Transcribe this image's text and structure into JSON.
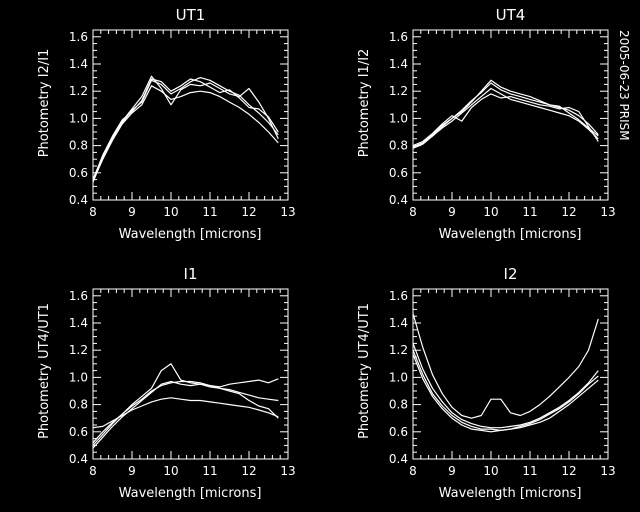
{
  "side_label": "2005-06-23 PRISM",
  "colors": {
    "background": "#000000",
    "foreground": "#ffffff"
  },
  "chart_data": [
    {
      "type": "line",
      "title": "UT1",
      "xlabel": "Wavelength [microns]",
      "ylabel": "Photometry I2/I1",
      "xlim": [
        8,
        13
      ],
      "ylim": [
        0.4,
        1.65
      ],
      "xticks": [
        "8",
        "9",
        "10",
        "11",
        "12",
        "13"
      ],
      "yticks": [
        "0.4",
        "0.6",
        "0.8",
        "1.0",
        "1.2",
        "1.4",
        "1.6"
      ],
      "grid": false,
      "x": [
        8.0,
        8.25,
        8.5,
        8.75,
        9.0,
        9.25,
        9.5,
        9.75,
        10.0,
        10.25,
        10.5,
        10.75,
        11.0,
        11.25,
        11.5,
        11.75,
        12.0,
        12.25,
        12.5,
        12.75
      ],
      "series": [
        {
          "values": [
            0.55,
            0.72,
            0.86,
            0.97,
            1.06,
            1.12,
            1.28,
            1.25,
            1.18,
            1.22,
            1.27,
            1.3,
            1.28,
            1.24,
            1.2,
            1.17,
            1.1,
            1.04,
            0.97,
            0.88
          ]
        },
        {
          "values": [
            0.54,
            0.7,
            0.84,
            0.96,
            1.04,
            1.1,
            1.24,
            1.2,
            1.14,
            1.16,
            1.19,
            1.2,
            1.19,
            1.16,
            1.12,
            1.08,
            1.03,
            0.97,
            0.9,
            0.82
          ]
        },
        {
          "values": [
            0.53,
            0.71,
            0.85,
            0.98,
            1.07,
            1.16,
            1.31,
            1.22,
            1.1,
            1.21,
            1.25,
            1.24,
            1.26,
            1.22,
            1.18,
            1.16,
            1.22,
            1.12,
            1.0,
            0.85
          ]
        },
        {
          "values": [
            0.55,
            0.73,
            0.87,
            0.99,
            1.05,
            1.13,
            1.29,
            1.27,
            1.2,
            1.24,
            1.29,
            1.27,
            1.23,
            1.19,
            1.21,
            1.15,
            1.08,
            1.07,
            1.01,
            0.9
          ]
        }
      ]
    },
    {
      "type": "line",
      "title": "UT4",
      "xlabel": "Wavelength [microns]",
      "ylabel": "Photometry I1/I2",
      "xlim": [
        8,
        13
      ],
      "ylim": [
        0.4,
        1.65
      ],
      "xticks": [
        "8",
        "9",
        "10",
        "11",
        "12",
        "13"
      ],
      "yticks": [
        "0.4",
        "0.6",
        "0.8",
        "1.0",
        "1.2",
        "1.4",
        "1.6"
      ],
      "grid": false,
      "x": [
        8.0,
        8.25,
        8.5,
        8.75,
        9.0,
        9.25,
        9.5,
        9.75,
        10.0,
        10.25,
        10.5,
        10.75,
        11.0,
        11.25,
        11.5,
        11.75,
        12.0,
        12.25,
        12.5,
        12.75
      ],
      "series": [
        {
          "values": [
            0.79,
            0.82,
            0.88,
            0.95,
            1.0,
            1.05,
            1.12,
            1.2,
            1.28,
            1.23,
            1.2,
            1.18,
            1.16,
            1.13,
            1.1,
            1.08,
            1.06,
            1.02,
            0.96,
            0.88
          ]
        },
        {
          "values": [
            0.78,
            0.81,
            0.87,
            0.93,
            0.98,
            1.04,
            1.1,
            1.16,
            1.22,
            1.18,
            1.14,
            1.12,
            1.1,
            1.08,
            1.06,
            1.04,
            1.02,
            0.98,
            0.92,
            0.85
          ]
        },
        {
          "values": [
            0.8,
            0.83,
            0.89,
            0.96,
            1.02,
            0.98,
            1.08,
            1.14,
            1.18,
            1.15,
            1.16,
            1.14,
            1.12,
            1.1,
            1.09,
            1.07,
            1.08,
            1.05,
            0.94,
            0.83
          ]
        },
        {
          "values": [
            0.79,
            0.82,
            0.87,
            0.94,
            1.0,
            1.06,
            1.13,
            1.19,
            1.26,
            1.21,
            1.18,
            1.16,
            1.14,
            1.12,
            1.1,
            1.09,
            1.04,
            0.99,
            0.93,
            0.87
          ]
        }
      ]
    },
    {
      "type": "line",
      "title": "I1",
      "xlabel": "Wavelength [microns]",
      "ylabel": "Photometry UT4/UT1",
      "xlim": [
        8,
        13
      ],
      "ylim": [
        0.4,
        1.65
      ],
      "xticks": [
        "8",
        "9",
        "10",
        "11",
        "12",
        "13"
      ],
      "yticks": [
        "0.4",
        "0.6",
        "0.8",
        "1.0",
        "1.2",
        "1.4",
        "1.6"
      ],
      "grid": false,
      "x": [
        8.0,
        8.25,
        8.5,
        8.75,
        9.0,
        9.25,
        9.5,
        9.75,
        10.0,
        10.25,
        10.5,
        10.75,
        11.0,
        11.25,
        11.5,
        11.75,
        12.0,
        12.25,
        12.5,
        12.75
      ],
      "series": [
        {
          "values": [
            0.5,
            0.58,
            0.66,
            0.73,
            0.8,
            0.86,
            0.92,
            1.05,
            1.1,
            0.98,
            0.96,
            0.95,
            0.94,
            0.93,
            0.95,
            0.96,
            0.97,
            0.98,
            0.96,
            0.99
          ]
        },
        {
          "values": [
            0.63,
            0.64,
            0.68,
            0.72,
            0.76,
            0.79,
            0.82,
            0.84,
            0.85,
            0.84,
            0.83,
            0.83,
            0.82,
            0.81,
            0.8,
            0.79,
            0.78,
            0.76,
            0.74,
            0.71
          ]
        },
        {
          "values": [
            0.48,
            0.56,
            0.64,
            0.71,
            0.77,
            0.83,
            0.89,
            0.95,
            0.97,
            0.95,
            0.94,
            0.95,
            0.93,
            0.92,
            0.91,
            0.89,
            0.87,
            0.85,
            0.84,
            0.83
          ]
        },
        {
          "values": [
            0.52,
            0.6,
            0.67,
            0.73,
            0.79,
            0.84,
            0.9,
            0.94,
            0.96,
            0.97,
            0.97,
            0.96,
            0.94,
            0.92,
            0.9,
            0.88,
            0.83,
            0.79,
            0.77,
            0.7
          ]
        }
      ]
    },
    {
      "type": "line",
      "title": "I2",
      "xlabel": "Wavelength [microns]",
      "ylabel": "Photometry UT4/UT1",
      "xlim": [
        8,
        13
      ],
      "ylim": [
        0.4,
        1.65
      ],
      "xticks": [
        "8",
        "9",
        "10",
        "11",
        "12",
        "13"
      ],
      "yticks": [
        "0.4",
        "0.6",
        "0.8",
        "1.0",
        "1.2",
        "1.4",
        "1.6"
      ],
      "grid": false,
      "x": [
        8.0,
        8.25,
        8.5,
        8.75,
        9.0,
        9.25,
        9.5,
        9.75,
        10.0,
        10.25,
        10.5,
        10.75,
        11.0,
        11.25,
        11.5,
        11.75,
        12.0,
        12.25,
        12.5,
        12.75
      ],
      "series": [
        {
          "values": [
            1.47,
            1.22,
            1.02,
            0.88,
            0.78,
            0.72,
            0.7,
            0.72,
            0.84,
            0.84,
            0.74,
            0.72,
            0.75,
            0.8,
            0.86,
            0.93,
            1.0,
            1.08,
            1.2,
            1.43
          ]
        },
        {
          "values": [
            1.25,
            1.06,
            0.92,
            0.82,
            0.74,
            0.69,
            0.66,
            0.64,
            0.63,
            0.63,
            0.64,
            0.65,
            0.67,
            0.7,
            0.74,
            0.78,
            0.83,
            0.89,
            0.96,
            1.05
          ]
        },
        {
          "values": [
            1.2,
            1.02,
            0.88,
            0.79,
            0.72,
            0.67,
            0.64,
            0.62,
            0.62,
            0.61,
            0.62,
            0.63,
            0.65,
            0.67,
            0.7,
            0.75,
            0.8,
            0.86,
            0.92,
            0.98
          ]
        },
        {
          "values": [
            1.17,
            0.99,
            0.86,
            0.77,
            0.7,
            0.65,
            0.62,
            0.61,
            0.6,
            0.61,
            0.62,
            0.64,
            0.66,
            0.69,
            0.73,
            0.77,
            0.82,
            0.88,
            0.95,
            1.01
          ]
        }
      ]
    }
  ]
}
